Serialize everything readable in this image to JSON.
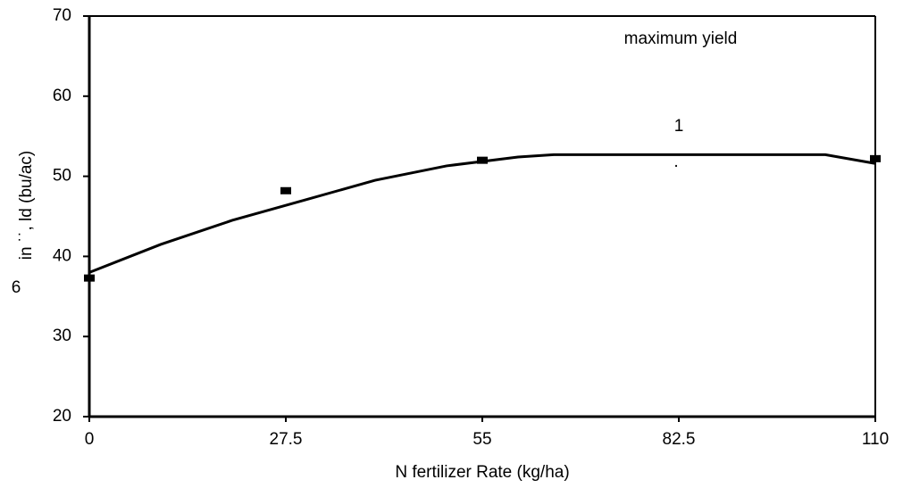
{
  "chart_data": {
    "type": "line",
    "xlabel": "N fertilizer Rate (kg/ha)",
    "ylabel": "in ˙˙, ld (bu/ac)",
    "annotations": [
      "maximum yield",
      "1",
      ".",
      "6"
    ],
    "xlim": [
      0,
      110
    ],
    "xticks": [
      0,
      27.5,
      55,
      82.5,
      110
    ],
    "ylim": [
      20,
      70
    ],
    "yticks": [
      20,
      30,
      40,
      50,
      60,
      70
    ],
    "grid": false,
    "series": [
      {
        "type": "line",
        "color": "#000000",
        "x": [
          0,
          10,
          20,
          30,
          40,
          50,
          60,
          65,
          103,
          110
        ],
        "values": [
          38,
          41.5,
          44.5,
          47,
          49.5,
          51.3,
          52.4,
          52.7,
          52.7,
          51.6
        ]
      },
      {
        "type": "scatter",
        "color": "#000000",
        "x": [
          0,
          27.5,
          55,
          110
        ],
        "values": [
          37.3,
          48.2,
          52,
          52.2
        ]
      }
    ]
  }
}
